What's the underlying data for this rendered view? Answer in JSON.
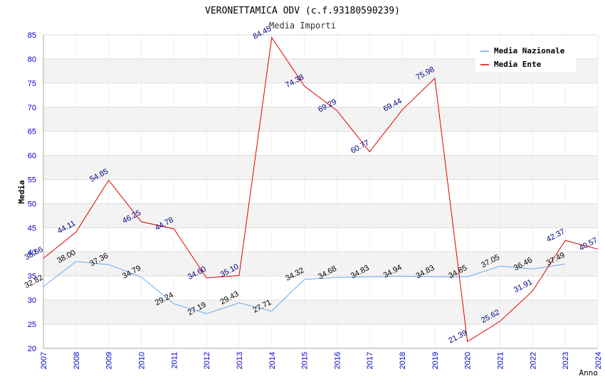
{
  "chart_data": {
    "type": "line",
    "title": "VERONETTAMICA ODV (c.f.93180590239)",
    "subtitle": "Media Importi",
    "xlabel": "Anno",
    "ylabel": "Media",
    "ylim": [
      20,
      85
    ],
    "yticks": [
      20,
      25,
      30,
      35,
      40,
      45,
      50,
      55,
      60,
      65,
      70,
      75,
      80,
      85
    ],
    "xlim": [
      2007,
      2024
    ],
    "x": [
      2007,
      2008,
      2009,
      2010,
      2011,
      2012,
      2013,
      2014,
      2015,
      2016,
      2017,
      2018,
      2019,
      2020,
      2021,
      2022,
      2023,
      2024
    ],
    "grid": true,
    "legend_position": "top-right",
    "series": [
      {
        "name": "Media Nazionale",
        "color": "#66aaee",
        "label_color": "#000000",
        "x": [
          2007,
          2008,
          2009,
          2010,
          2011,
          2012,
          2013,
          2014,
          2015,
          2016,
          2017,
          2018,
          2019,
          2020,
          2021,
          2022,
          2023
        ],
        "values": [
          32.82,
          38.0,
          37.36,
          34.79,
          29.24,
          27.19,
          29.43,
          27.71,
          34.32,
          34.68,
          34.83,
          34.94,
          34.83,
          34.85,
          37.05,
          36.46,
          37.49
        ],
        "labels": [
          "32.82",
          "38.00",
          "37.36",
          "34.79",
          "29.24",
          "27.19",
          "29.43",
          "27.71",
          "34.32",
          "34.68",
          "34.83",
          "34.94",
          "34.83",
          "34.85",
          "37.05",
          "36.46",
          "37.49"
        ]
      },
      {
        "name": "Media Ente",
        "color": "#dd0000",
        "label_color": "#000080",
        "x": [
          2007,
          2008,
          2009,
          2010,
          2011,
          2012,
          2013,
          2014,
          2015,
          2016,
          2017,
          2018,
          2019,
          2020,
          2021,
          2022,
          2023,
          2024
        ],
        "values": [
          38.66,
          44.11,
          54.85,
          46.25,
          44.78,
          34.6,
          35.1,
          84.45,
          74.38,
          69.29,
          60.77,
          69.44,
          75.98,
          21.39,
          25.62,
          31.91,
          42.37,
          40.57
        ],
        "labels": [
          "38.66",
          "44.11",
          "54.85",
          "46.25",
          "44.78",
          "34.60",
          "35.10",
          "84.45",
          "74.38",
          "69.29",
          "60.77",
          "69.44",
          "75.98",
          "21.39",
          "25.62",
          "31.91",
          "42.37",
          "40.57"
        ]
      }
    ]
  }
}
